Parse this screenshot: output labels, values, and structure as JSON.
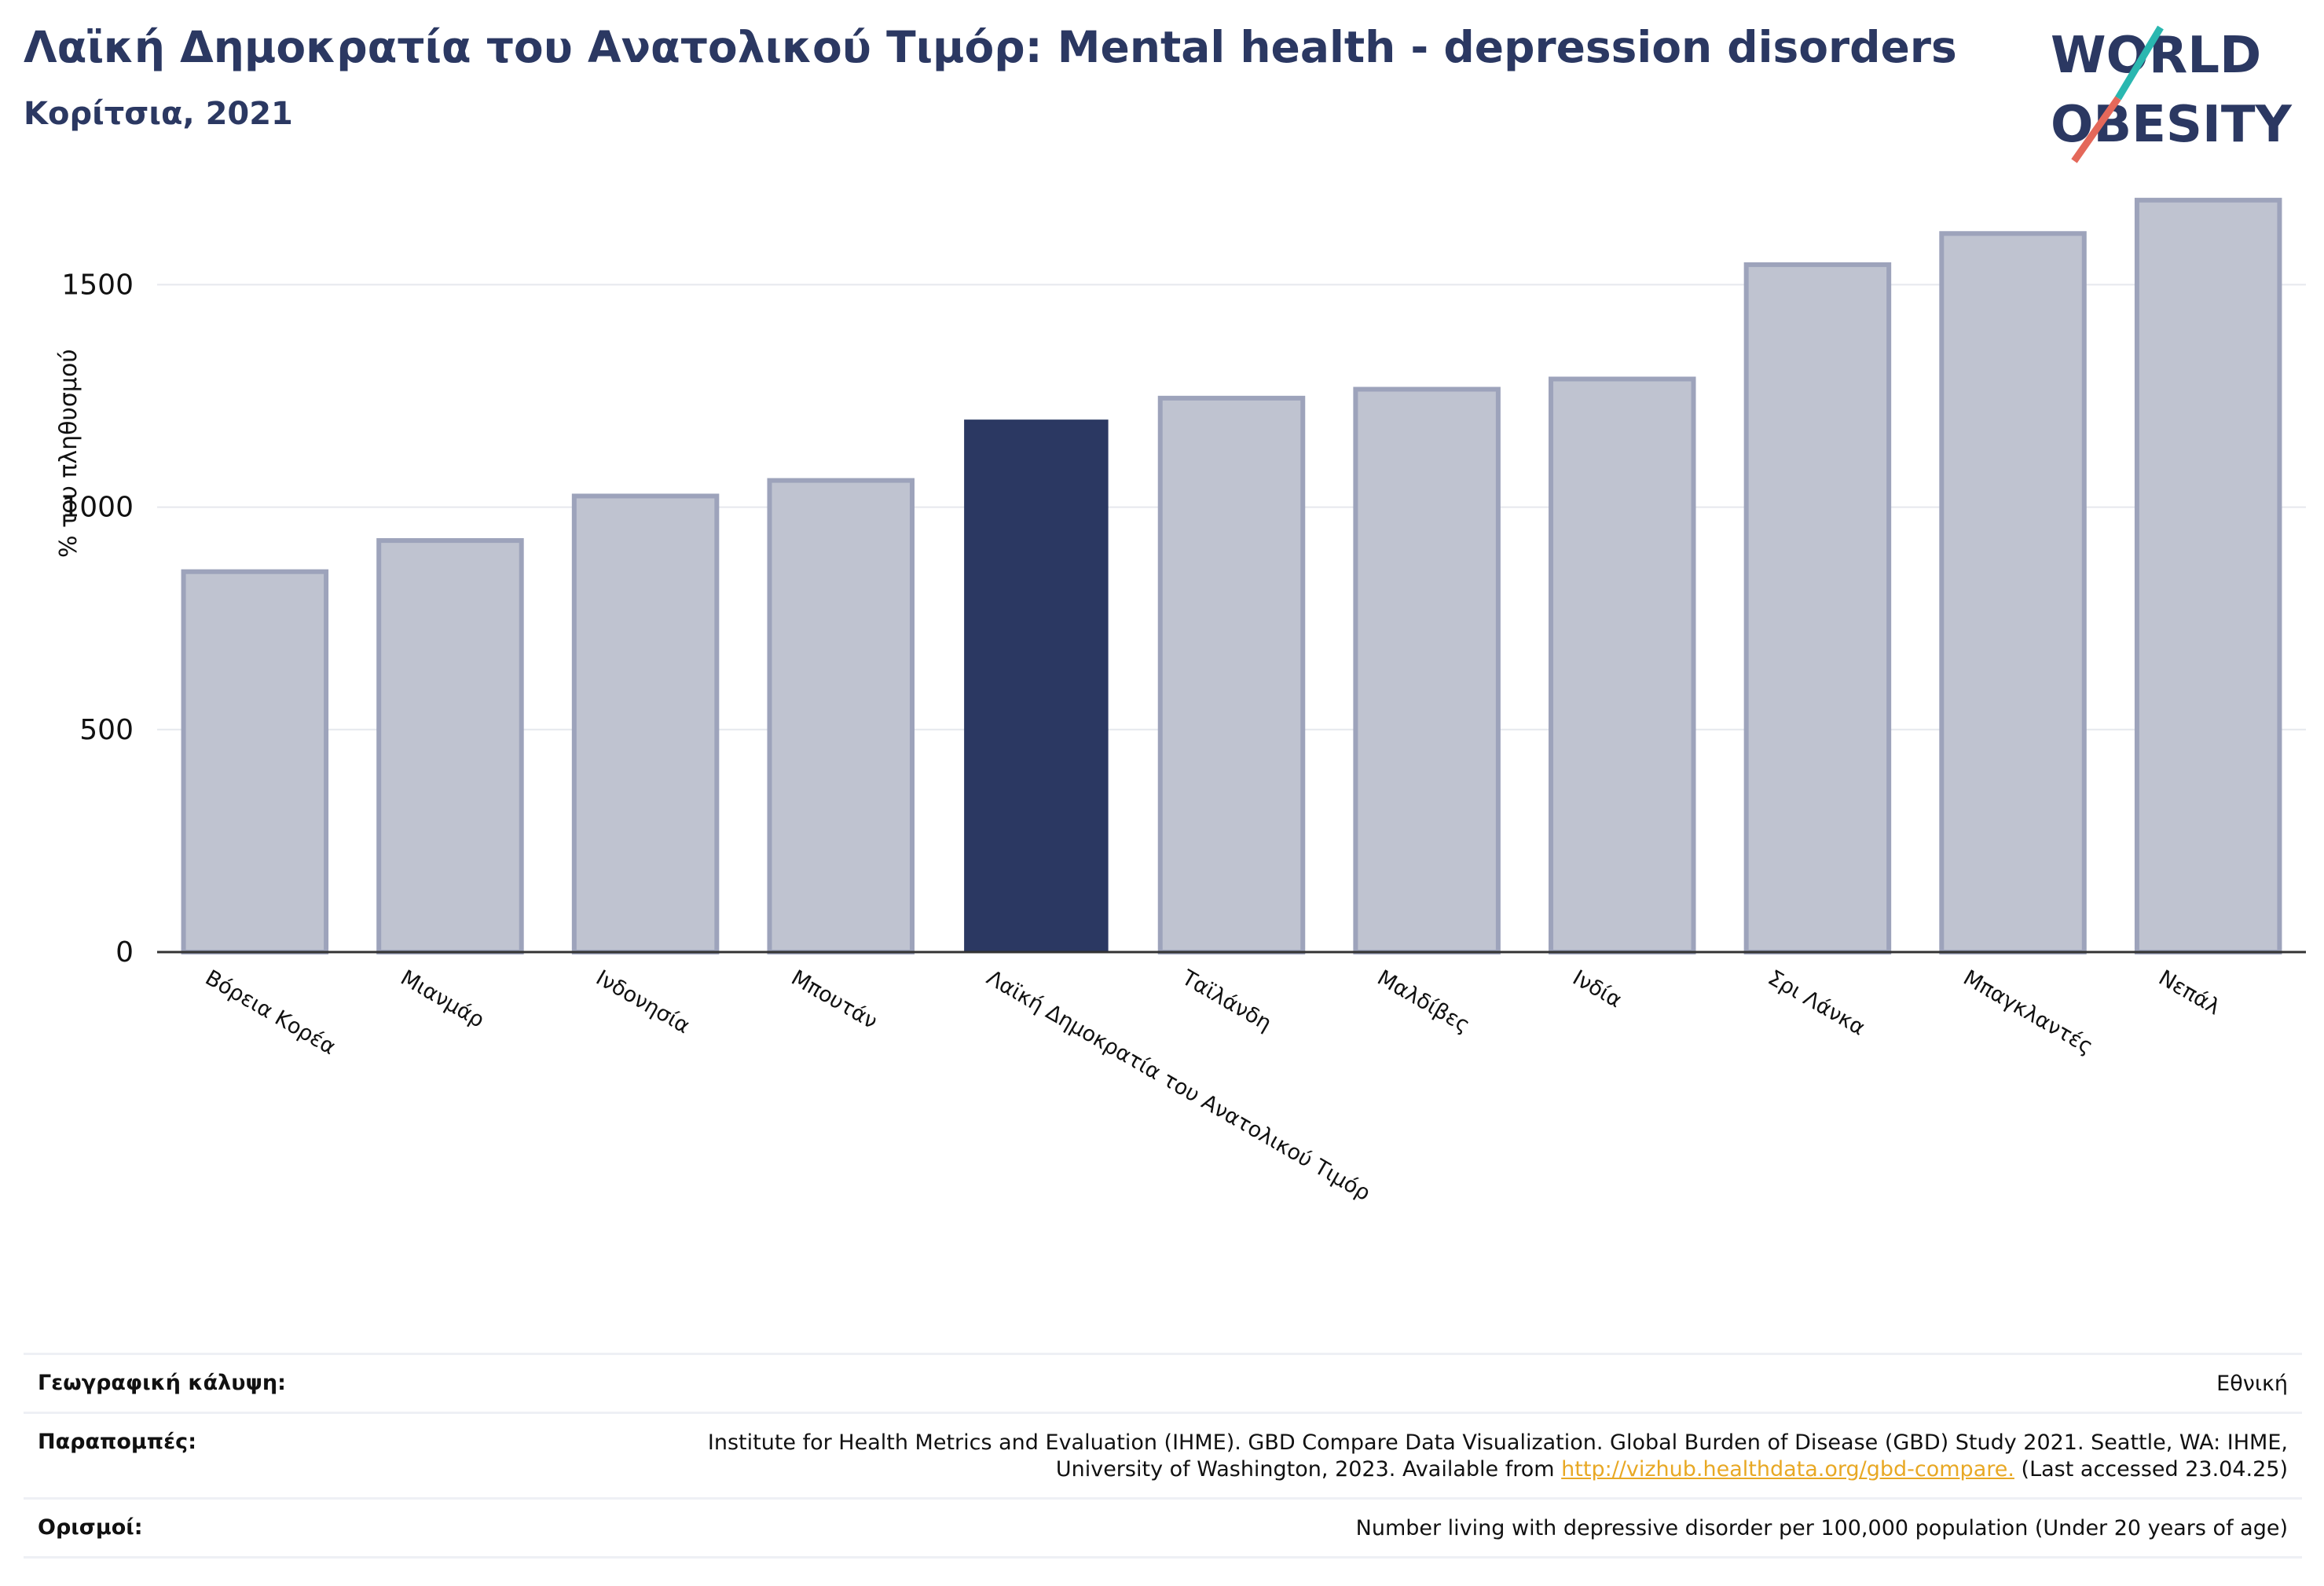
{
  "header": {
    "title": "Λαϊκή Δημοκρατία του Ανατολικού Τιμόρ: Mental health - depression disorders",
    "subtitle": "Κορίτσια, 2021"
  },
  "logo": {
    "line1": "WORLD",
    "line2": "OBESITY"
  },
  "colors": {
    "highlight": "#2b3862",
    "bar": "#bfc3d0",
    "bar_border": "#9da3bb",
    "accent_teal": "#2ab7b0",
    "accent_red": "#e4685a"
  },
  "chart_data": {
    "type": "bar",
    "ylabel": "% του πληθυσμού",
    "ylim": [
      0,
      1700
    ],
    "yticks": [
      0,
      500,
      1000,
      1500
    ],
    "grid": true,
    "categories": [
      "Βόρεια Κορέα",
      "Μιανμάρ",
      "Ινδονησία",
      "Μπουτάν",
      "Λαϊκή Δημοκρατία του Ανατολικού Τιμόρ",
      "Ταϊλάνδη",
      "Μαλδίβες",
      "Ινδία",
      "Σρι Λάνκα",
      "Μπαγκλαντές",
      "Νεπάλ"
    ],
    "values": [
      855,
      925,
      1025,
      1060,
      1195,
      1245,
      1265,
      1288,
      1545,
      1615,
      1690
    ],
    "highlight_index": 4
  },
  "footer": {
    "coverage_label": "Γεωγραφική κάλυψη:",
    "coverage_value": "Εθνική",
    "references_label": "Παραπομπές:",
    "references_text_1": "Institute for Health Metrics and Evaluation (IHME). GBD Compare Data Visualization. Global Burden of Disease (GBD) Study 2021. Seattle, WA: IHME, University of Washington, 2023. Available from",
    "references_link": "http://vizhub.healthdata.org/gbd-compare.",
    "references_text_2": "(Last accessed 23.04.25)",
    "definitions_label": "Ορισμοί:",
    "definitions_value": "Number living with depressive disorder per 100,000 population (Under 20 years of age)"
  }
}
